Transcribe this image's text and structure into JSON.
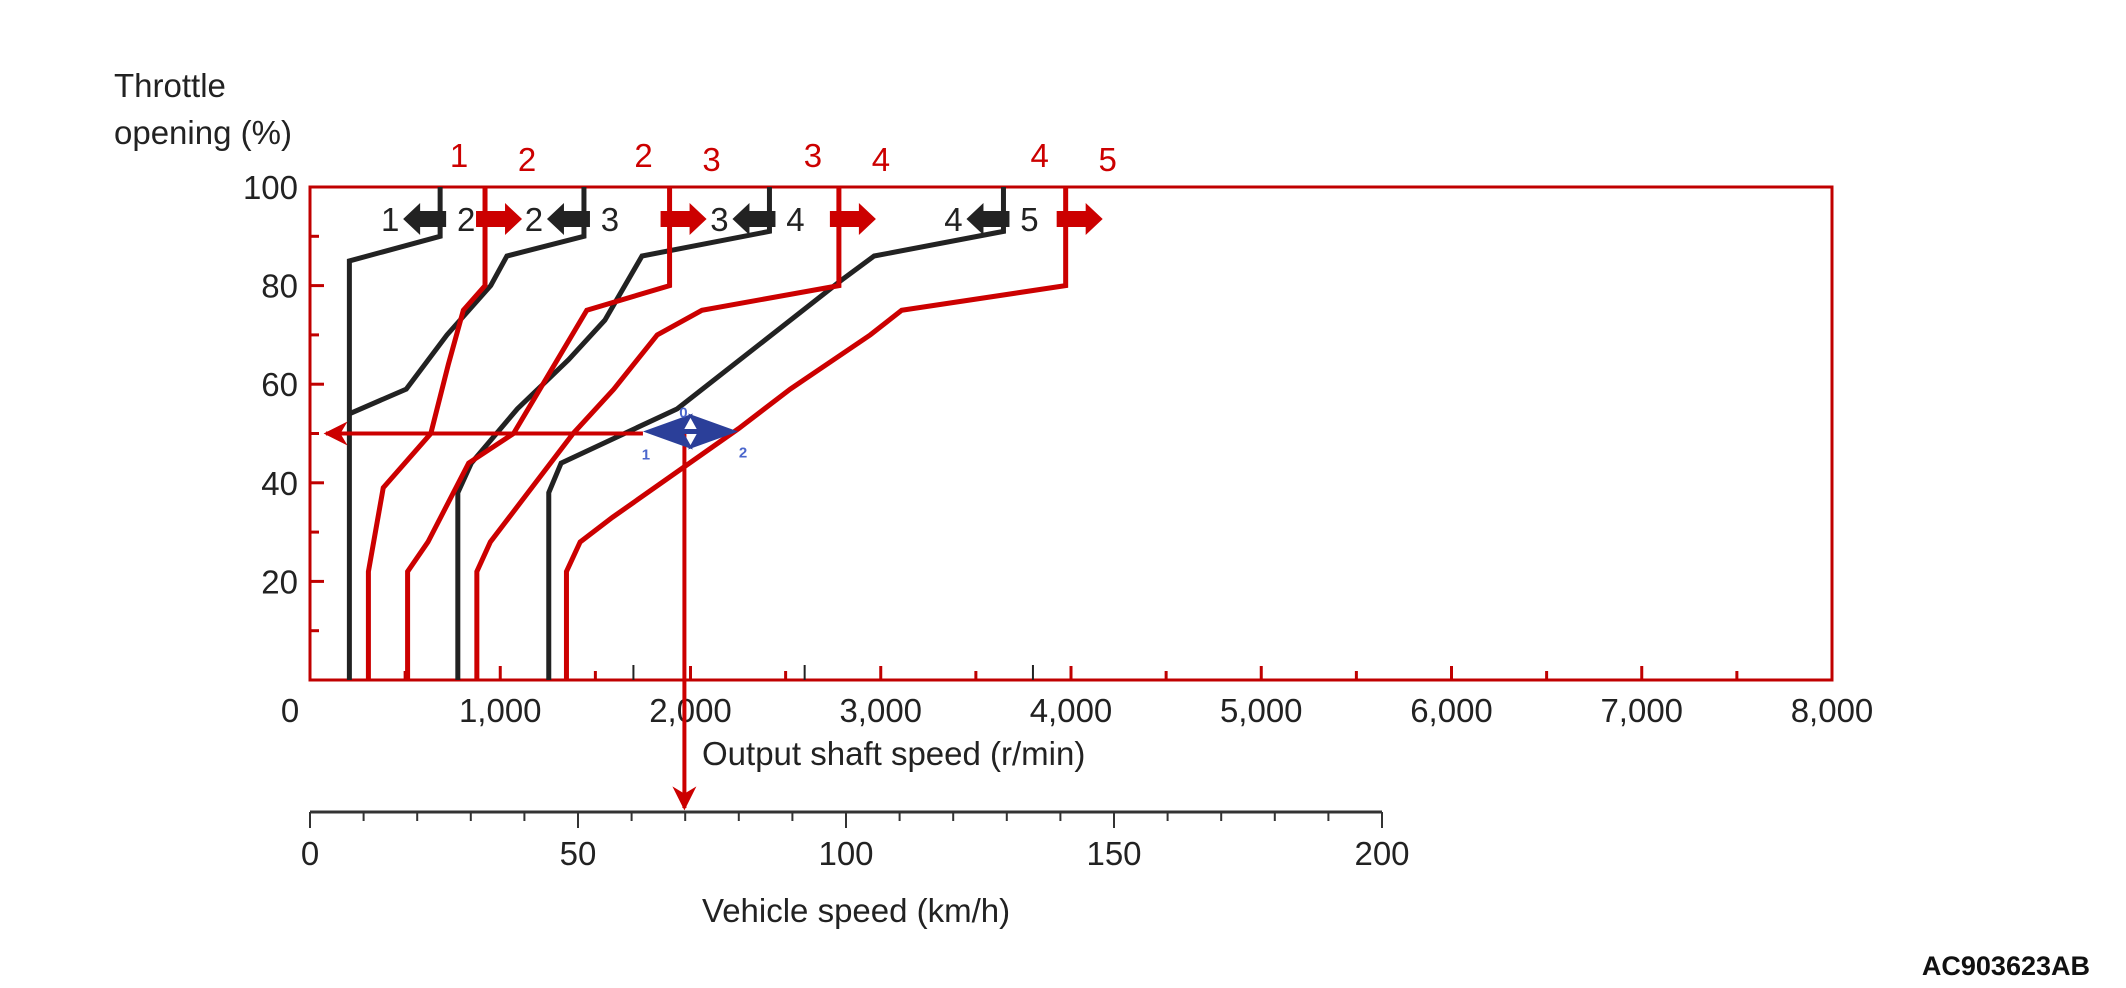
{
  "figure_code": "AC903623AB",
  "colors": {
    "upshift": "#cc0000",
    "downshift": "#222222",
    "frame": "#c00000",
    "annotation": "#2b3f99",
    "annotation_text": "#4a66cc"
  },
  "chart_data": {
    "type": "line",
    "title": "",
    "ylabel_line1": "Throttle",
    "ylabel_line2": "opening (%)",
    "xlabel": "Output shaft speed (r/min)",
    "x2label": "Vehicle speed (km/h)",
    "xlim": [
      0,
      8000
    ],
    "ylim": [
      0,
      100
    ],
    "x2lim": [
      0,
      200
    ],
    "grid": false,
    "x_ticks": [
      {
        "value": 0,
        "label": "0"
      },
      {
        "value": 1000,
        "label": "1,000"
      },
      {
        "value": 2000,
        "label": "2,000"
      },
      {
        "value": 3000,
        "label": "3,000"
      },
      {
        "value": 4000,
        "label": "4,000"
      },
      {
        "value": 5000,
        "label": "5,000"
      },
      {
        "value": 6000,
        "label": "6,000"
      },
      {
        "value": 7000,
        "label": "7,000"
      },
      {
        "value": 8000,
        "label": "8,000"
      }
    ],
    "y_ticks": [
      {
        "value": 20,
        "label": "20"
      },
      {
        "value": 40,
        "label": "40"
      },
      {
        "value": 60,
        "label": "60"
      },
      {
        "value": 80,
        "label": "80"
      },
      {
        "value": 100,
        "label": "100"
      }
    ],
    "x2_ticks": [
      {
        "value": 0,
        "label": "0"
      },
      {
        "value": 50,
        "label": "50"
      },
      {
        "value": 100,
        "label": "100"
      },
      {
        "value": 150,
        "label": "150"
      },
      {
        "value": 200,
        "label": "200"
      }
    ],
    "series": [
      {
        "name": "downshift 2-1",
        "kind": "downshift",
        "from": "2",
        "to": "1",
        "points": [
          [
            207,
            0
          ],
          [
            207,
            85
          ],
          [
            684,
            90
          ],
          [
            684,
            100
          ]
        ]
      },
      {
        "name": "downshift 3-2",
        "kind": "downshift",
        "from": "3",
        "to": "2",
        "points": [
          [
            207,
            54
          ],
          [
            506,
            59
          ],
          [
            720,
            70
          ],
          [
            950,
            80
          ],
          [
            1035,
            86
          ],
          [
            1440,
            90
          ],
          [
            1440,
            100
          ]
        ]
      },
      {
        "name": "downshift 4-3",
        "kind": "downshift",
        "from": "4",
        "to": "3",
        "points": [
          [
            777,
            0
          ],
          [
            777,
            38
          ],
          [
            848,
            44
          ],
          [
            1090,
            55
          ],
          [
            1360,
            65
          ],
          [
            1550,
            73
          ],
          [
            1745,
            86
          ],
          [
            2415,
            91
          ],
          [
            2415,
            100
          ]
        ]
      },
      {
        "name": "downshift 5-4",
        "kind": "downshift",
        "from": "5",
        "to": "4",
        "points": [
          [
            1255,
            0
          ],
          [
            1255,
            38
          ],
          [
            1320,
            44
          ],
          [
            1930,
            55
          ],
          [
            2790,
            81
          ],
          [
            2965,
            86
          ],
          [
            3645,
            91
          ],
          [
            3645,
            100
          ]
        ]
      },
      {
        "name": "upshift 1-2",
        "kind": "upshift",
        "from": "1",
        "to": "2",
        "points": [
          [
            307,
            0
          ],
          [
            307,
            22
          ],
          [
            385,
            39
          ],
          [
            635,
            50
          ],
          [
            727,
            64
          ],
          [
            806,
            75
          ],
          [
            920,
            80
          ],
          [
            920,
            100
          ]
        ]
      },
      {
        "name": "upshift 2-3",
        "kind": "upshift",
        "from": "2",
        "to": "3",
        "points": [
          [
            513,
            0
          ],
          [
            513,
            22
          ],
          [
            620,
            28
          ],
          [
            834,
            44
          ],
          [
            1070,
            50
          ],
          [
            1455,
            75
          ],
          [
            1890,
            80
          ],
          [
            1890,
            100
          ]
        ]
      },
      {
        "name": "upshift 3-4",
        "kind": "upshift",
        "from": "3",
        "to": "4",
        "points": [
          [
            877,
            0
          ],
          [
            877,
            22
          ],
          [
            948,
            28
          ],
          [
            1383,
            50
          ],
          [
            1597,
            59
          ],
          [
            1825,
            70
          ],
          [
            2060,
            75
          ],
          [
            2780,
            80
          ],
          [
            2780,
            100
          ]
        ]
      },
      {
        "name": "upshift 4-5",
        "kind": "upshift",
        "from": "4",
        "to": "5",
        "points": [
          [
            1348,
            0
          ],
          [
            1348,
            22
          ],
          [
            1420,
            28
          ],
          [
            1590,
            33
          ],
          [
            2253,
            51
          ],
          [
            2524,
            59
          ],
          [
            2945,
            70
          ],
          [
            3110,
            75
          ],
          [
            3972,
            80
          ],
          [
            3972,
            100
          ]
        ]
      }
    ],
    "top_labels_upshift": [
      {
        "from": "1",
        "to": "2",
        "rpm": 920
      },
      {
        "from": "2",
        "to": "3",
        "rpm": 1890
      },
      {
        "from": "3",
        "to": "4",
        "rpm": 2780
      },
      {
        "from": "4",
        "to": "5",
        "rpm": 3972
      }
    ],
    "downshift_labels": [
      {
        "from": "2",
        "to": "1",
        "rpm": 684
      },
      {
        "from": "3",
        "to": "2",
        "rpm": 1440
      },
      {
        "from": "4",
        "to": "3",
        "rpm": 2415
      },
      {
        "from": "5",
        "to": "4",
        "rpm": 3645
      }
    ],
    "annotation": {
      "throttle": 50,
      "rpm": 1968,
      "vehicle_speed": 70,
      "range_start_rpm": 1750,
      "range_end_rpm": 2250,
      "label_center": "0",
      "label_left": "1",
      "label_right": "2"
    }
  }
}
